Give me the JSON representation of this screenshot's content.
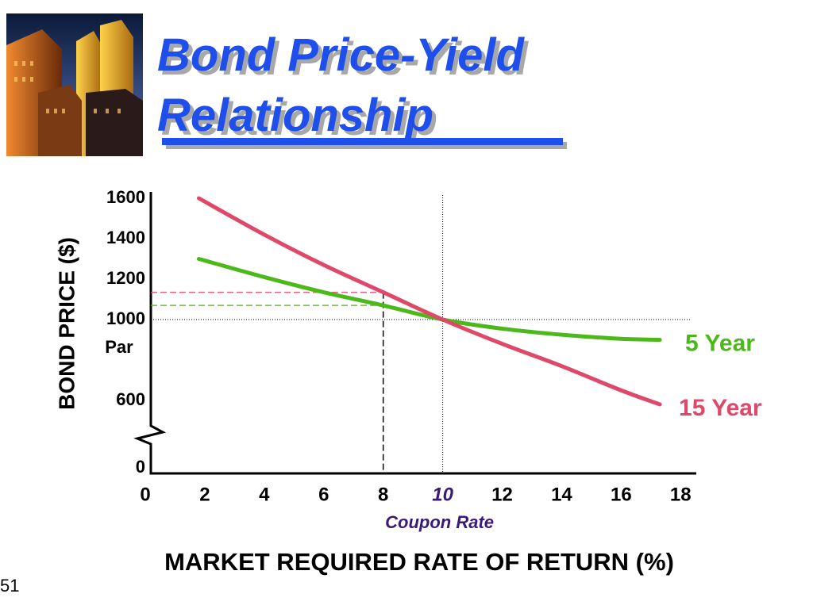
{
  "title": "Bond Price-Yield Relationship",
  "page_number": "51",
  "chart_data": {
    "type": "line",
    "x_label": "MARKET REQUIRED RATE OF RETURN (%)",
    "y_label": "BOND PRICE ($)",
    "x": [
      1.8,
      4,
      6,
      8,
      10,
      12,
      14,
      16,
      17.3
    ],
    "series": [
      {
        "name": "5 Year",
        "color": "#4cb81a",
        "values": [
          1300,
          1210,
          1135,
          1070,
          1000,
          955,
          925,
          905,
          900
        ]
      },
      {
        "name": "15 Year",
        "color": "#e0486a",
        "values": [
          1600,
          1420,
          1270,
          1135,
          1000,
          880,
          770,
          650,
          565
        ]
      }
    ],
    "xlim": [
      0,
      18.5
    ],
    "xticks": [
      0,
      2,
      4,
      6,
      8,
      10,
      12,
      14,
      16,
      18
    ],
    "ylim": [
      0,
      1600
    ],
    "yticks": [
      0,
      600,
      1000,
      1200,
      1400,
      1600
    ],
    "y_break": [
      0,
      600
    ],
    "par": 1000,
    "par_label": "Par",
    "coupon_rate": 10,
    "coupon_rate_label": "Coupon Rate",
    "highlight_x": 8
  }
}
